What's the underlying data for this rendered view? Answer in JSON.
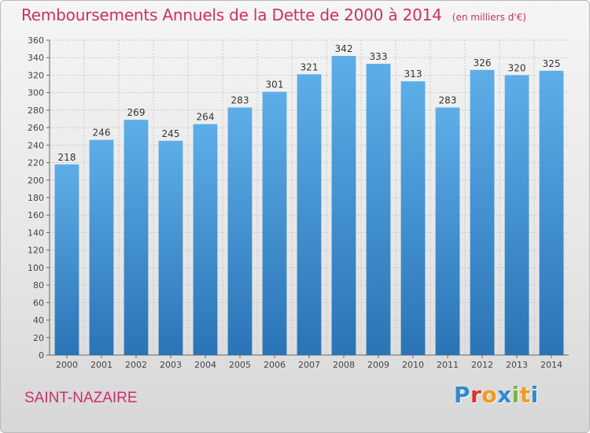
{
  "header": {
    "title": "Remboursements Annuels de la Dette de 2000 à 2014",
    "unit": "(en milliers d'€)"
  },
  "footer": {
    "city": "SAINT-NAZAIRE",
    "logo": "Proxiti"
  },
  "colors": {
    "bar_top": "#5daee8",
    "bar_bottom": "#2a74b6",
    "title": "#cc2e6b",
    "grid": "#c8c8c8",
    "logo_letters": [
      "#2f8ad0",
      "#e0322e",
      "#f19a1f",
      "#2f8ad0",
      "#79b83a",
      "#f19a1f",
      "#2f8ad0"
    ]
  },
  "chart_data": {
    "type": "bar",
    "title": "Remboursements Annuels de la Dette de 2000 à 2014",
    "categories": [
      "2000",
      "2001",
      "2002",
      "2003",
      "2004",
      "2005",
      "2006",
      "2007",
      "2008",
      "2009",
      "2010",
      "2011",
      "2012",
      "2013",
      "2014"
    ],
    "values": [
      218,
      246,
      269,
      245,
      264,
      283,
      301,
      321,
      342,
      333,
      313,
      283,
      326,
      320,
      325
    ],
    "value_labels": [
      "218",
      "246",
      "269",
      "245",
      "264",
      "283",
      "301",
      "321",
      "342",
      "333",
      "313",
      "283",
      "326",
      "320",
      "325"
    ],
    "ylim": [
      0,
      360
    ],
    "yticks": [
      "0",
      "20",
      "40",
      "60",
      "80",
      "100",
      "120",
      "140",
      "160",
      "180",
      "200",
      "220",
      "240",
      "260",
      "280",
      "300",
      "320",
      "340",
      "360"
    ],
    "grid": true,
    "xlabel": "",
    "ylabel": ""
  }
}
